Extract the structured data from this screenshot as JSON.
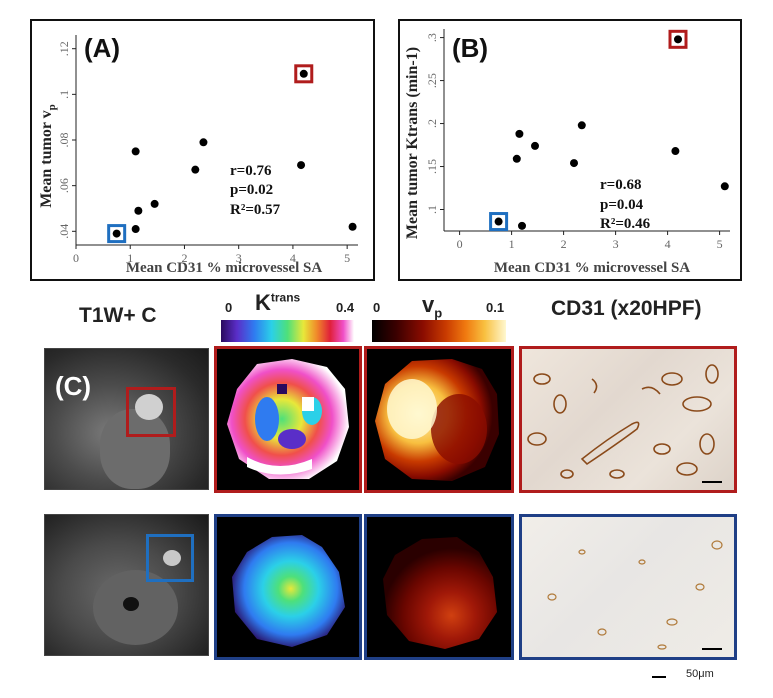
{
  "chart_data": [
    {
      "type": "scatter",
      "panel_label": "(A)",
      "xlabel": "Mean CD31 % microvessel SA",
      "ylabel_main": "Mean tumor v",
      "ylabel_sub": "p",
      "xlim": [
        0,
        5.2
      ],
      "ylim": [
        0.034,
        0.126
      ],
      "xticks": [
        0,
        1,
        2,
        3,
        4,
        5
      ],
      "yticks": [
        0.04,
        0.06,
        0.08,
        0.1,
        0.12
      ],
      "ytick_labels": [
        ".04",
        ".06",
        ".08",
        ".1",
        ".12"
      ],
      "points": [
        {
          "x": 0.75,
          "y": 0.039,
          "highlight": "blue"
        },
        {
          "x": 1.1,
          "y": 0.075
        },
        {
          "x": 1.15,
          "y": 0.049
        },
        {
          "x": 1.1,
          "y": 0.041
        },
        {
          "x": 1.45,
          "y": 0.052
        },
        {
          "x": 2.2,
          "y": 0.067
        },
        {
          "x": 2.35,
          "y": 0.079
        },
        {
          "x": 4.15,
          "y": 0.069
        },
        {
          "x": 4.2,
          "y": 0.109,
          "highlight": "red"
        },
        {
          "x": 5.1,
          "y": 0.042
        }
      ],
      "stats": {
        "r": "r=0.76",
        "p": "p=0.02",
        "r2": "R²=0.57"
      }
    },
    {
      "type": "scatter",
      "panel_label": "(B)",
      "xlabel": "Mean CD31 % microvessel SA",
      "ylabel_main": "Mean tumor Ktrans (min-1)",
      "xlim": [
        -0.3,
        5.2
      ],
      "ylim": [
        0.075,
        0.31
      ],
      "xticks": [
        0,
        1,
        2,
        3,
        4,
        5
      ],
      "yticks": [
        0.1,
        0.15,
        0.2,
        0.25,
        0.3
      ],
      "ytick_labels": [
        ".1",
        ".15",
        ".2",
        ".25",
        ".3"
      ],
      "points": [
        {
          "x": 0.75,
          "y": 0.086,
          "highlight": "blue"
        },
        {
          "x": 1.1,
          "y": 0.159
        },
        {
          "x": 1.15,
          "y": 0.188
        },
        {
          "x": 1.2,
          "y": 0.081
        },
        {
          "x": 1.45,
          "y": 0.174
        },
        {
          "x": 2.2,
          "y": 0.154
        },
        {
          "x": 2.35,
          "y": 0.198
        },
        {
          "x": 4.15,
          "y": 0.168
        },
        {
          "x": 4.2,
          "y": 0.298,
          "highlight": "red"
        },
        {
          "x": 5.1,
          "y": 0.127
        }
      ],
      "stats": {
        "r": "r=0.68",
        "p": "p=0.04",
        "r2": "R²=0.46"
      }
    }
  ],
  "images": {
    "panel_label": "(C)",
    "t1w_title": "T1W+ C",
    "ktrans_title": "K",
    "ktrans_sup": "trans",
    "ktrans_min": "0",
    "ktrans_max": "0.4",
    "vp_title": "v",
    "vp_sub": "p",
    "vp_min": "0",
    "vp_max": "0.1",
    "cd31_title": "CD31 (x20HPF)",
    "scale_label": "50μm"
  },
  "colors": {
    "highlight_red": "#b01c1c",
    "highlight_blue": "#1f6fc0",
    "frame_red": "#b01c1c",
    "frame_blue": "#1f3f86"
  }
}
